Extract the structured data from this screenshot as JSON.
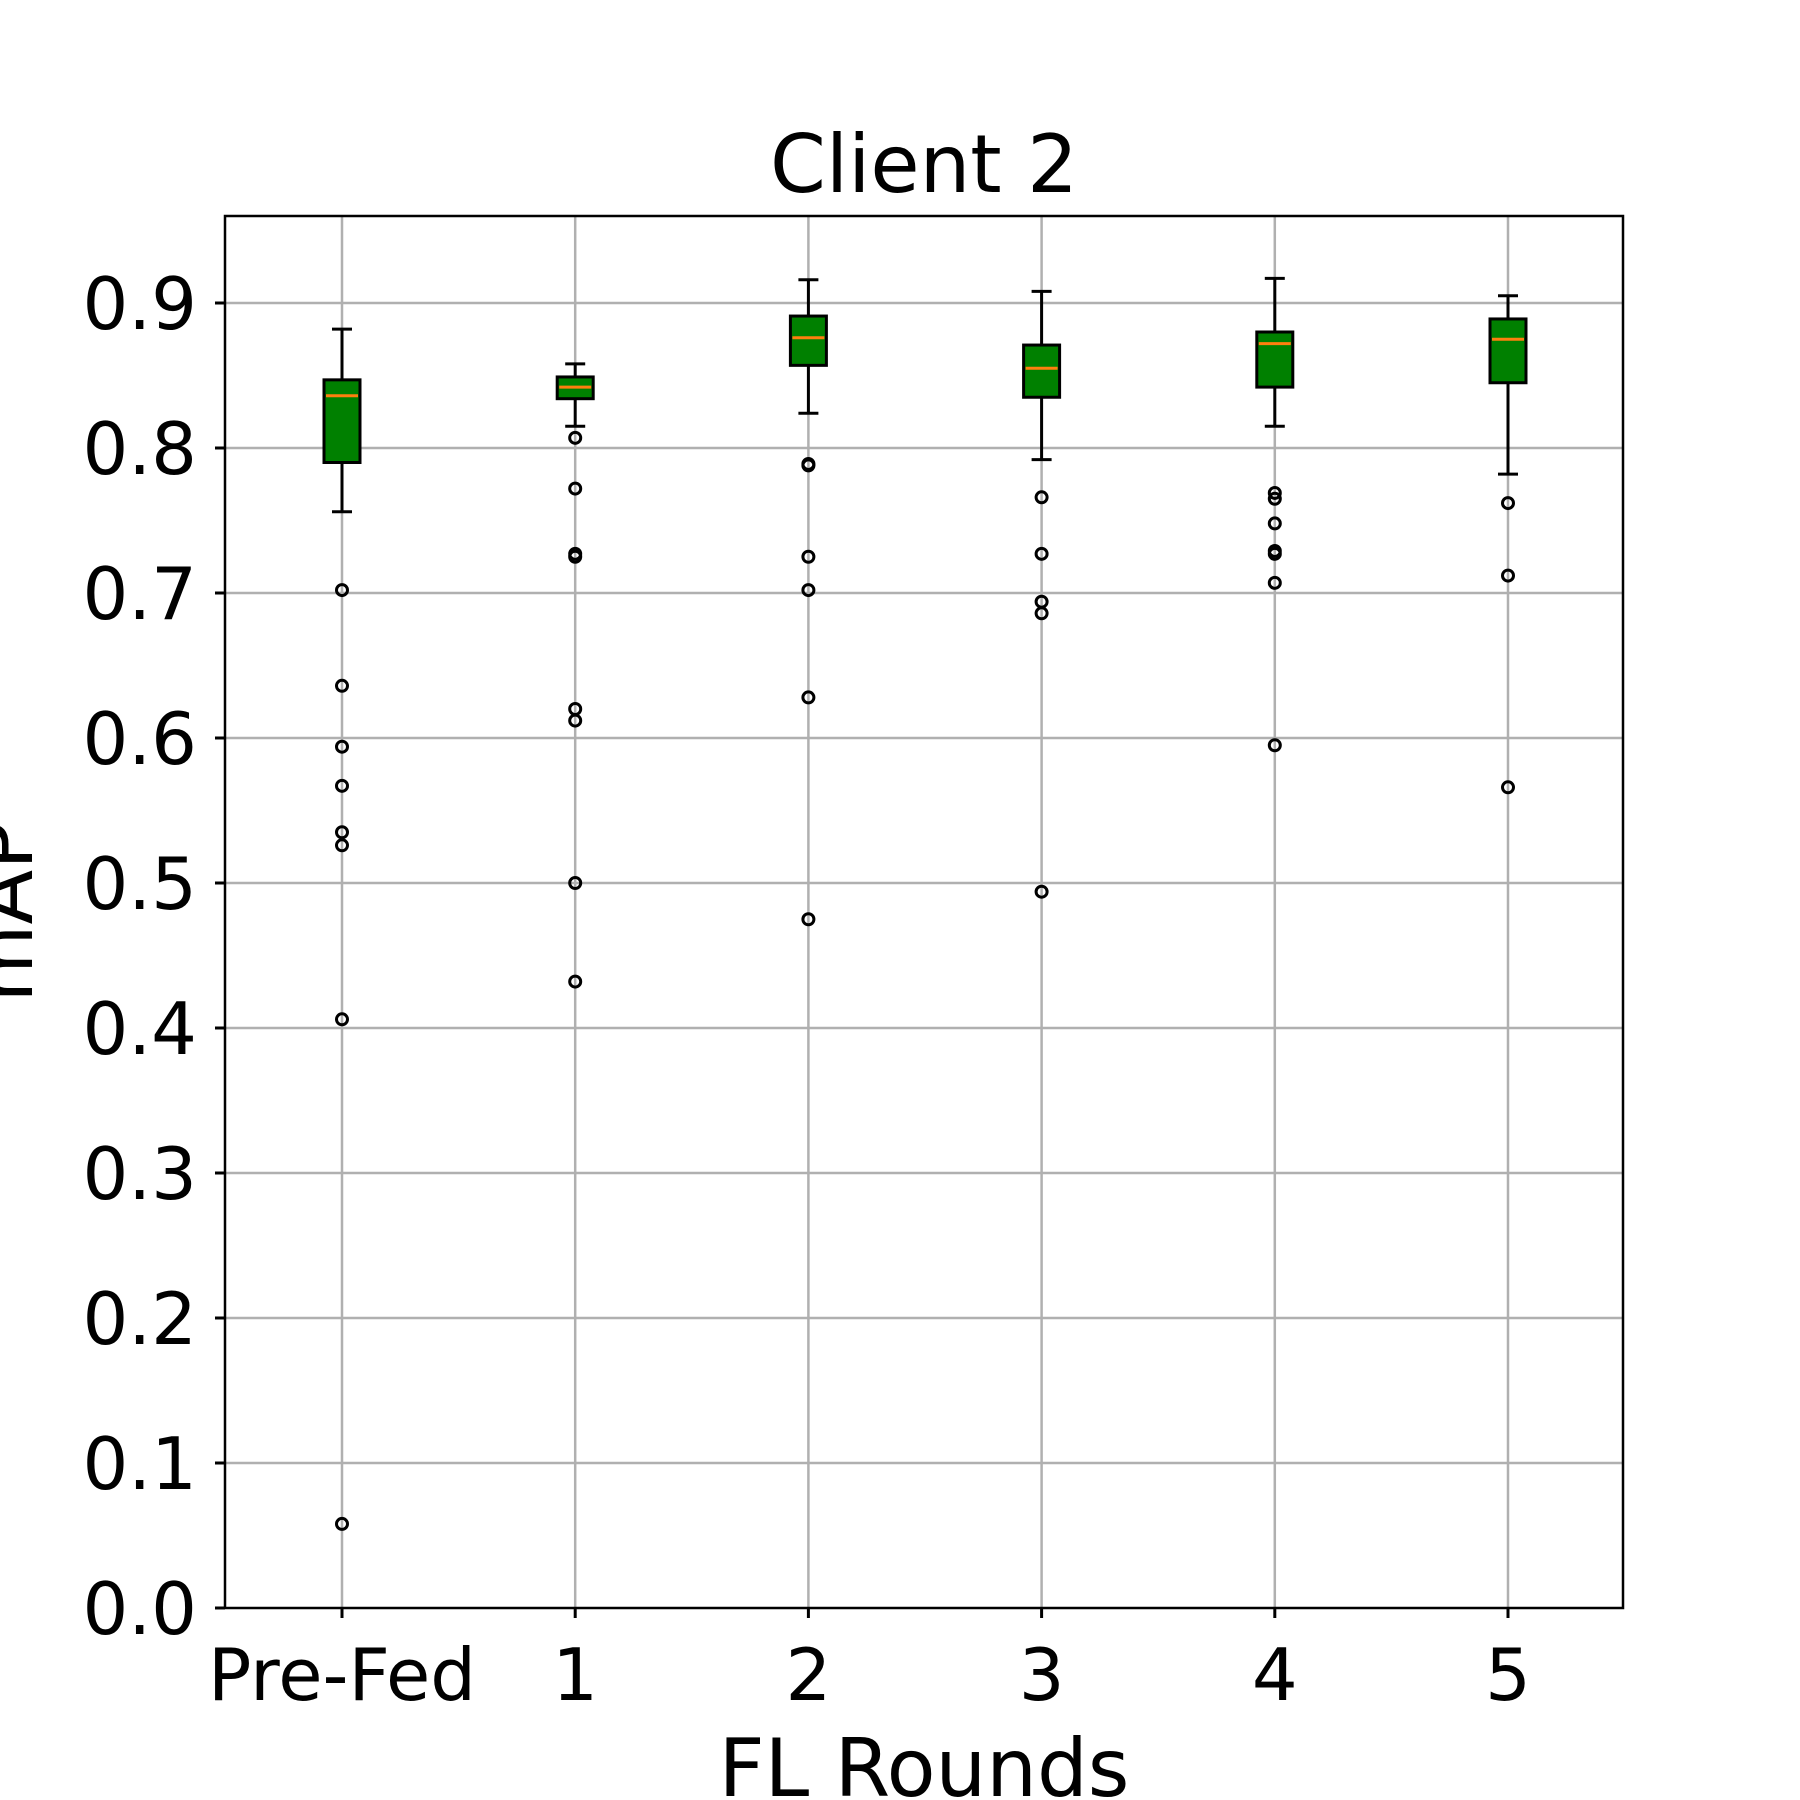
{
  "chart_data": {
    "type": "box",
    "title": "Client 2",
    "xlabel": "FL Rounds",
    "ylabel": "mAP",
    "ylim": [
      0,
      0.96
    ],
    "yticks": [
      0.0,
      0.1,
      0.2,
      0.3,
      0.4,
      0.5,
      0.6,
      0.7,
      0.8,
      0.9
    ],
    "grid": true,
    "box_color": "#008000",
    "median_color": "#ff7f0e",
    "categories": [
      "Pre-Fed",
      "1",
      "2",
      "3",
      "4",
      "5"
    ],
    "boxes": [
      {
        "whisker_low": 0.756,
        "q1": 0.79,
        "median": 0.836,
        "q3": 0.847,
        "whisker_high": 0.882,
        "fliers": [
          0.702,
          0.636,
          0.594,
          0.567,
          0.535,
          0.526,
          0.406,
          0.058
        ]
      },
      {
        "whisker_low": 0.815,
        "q1": 0.834,
        "median": 0.842,
        "q3": 0.849,
        "whisker_high": 0.858,
        "fliers": [
          0.807,
          0.772,
          0.727,
          0.725,
          0.62,
          0.612,
          0.5,
          0.432
        ]
      },
      {
        "whisker_low": 0.824,
        "q1": 0.857,
        "median": 0.876,
        "q3": 0.891,
        "whisker_high": 0.916,
        "fliers": [
          0.789,
          0.788,
          0.725,
          0.702,
          0.628,
          0.475
        ]
      },
      {
        "whisker_low": 0.792,
        "q1": 0.835,
        "median": 0.855,
        "q3": 0.871,
        "whisker_high": 0.908,
        "fliers": [
          0.766,
          0.727,
          0.694,
          0.686,
          0.494
        ]
      },
      {
        "whisker_low": 0.815,
        "q1": 0.842,
        "median": 0.872,
        "q3": 0.88,
        "whisker_high": 0.917,
        "fliers": [
          0.769,
          0.765,
          0.748,
          0.729,
          0.727,
          0.707,
          0.595
        ]
      },
      {
        "whisker_low": 0.782,
        "q1": 0.845,
        "median": 0.875,
        "q3": 0.889,
        "whisker_high": 0.905,
        "fliers": [
          0.762,
          0.712,
          0.566
        ]
      }
    ]
  }
}
